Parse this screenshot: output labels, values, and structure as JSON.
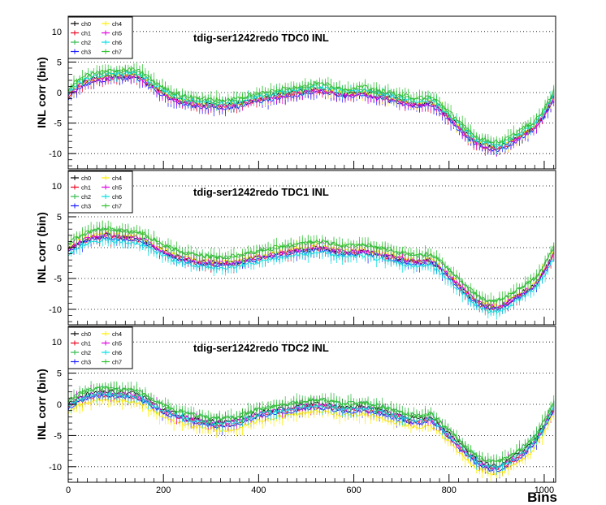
{
  "figure": {
    "xlabel": "Bins"
  },
  "colors": {
    "ch0": "#000000",
    "ch1": "#e8001c",
    "ch2": "#2fb84a",
    "ch3": "#1a1aff",
    "ch4": "#ffee00",
    "ch5": "#e000e0",
    "ch6": "#00e0e0",
    "ch7": "#30c030"
  },
  "chart_data": [
    {
      "type": "line",
      "title": "tdig-ser1242redo TDC0 INL",
      "ylabel": "INL corr (bin)",
      "xlim": [
        0,
        1024
      ],
      "ylim": [
        -12.5,
        12.5
      ],
      "xticks": [
        0,
        200,
        400,
        600,
        800,
        1000
      ],
      "yticks": [
        -10,
        -5,
        0,
        5,
        10
      ],
      "grid": "horizontal dotted",
      "legend": "top-left",
      "series_names": [
        "ch0",
        "ch1",
        "ch2",
        "ch3",
        "ch4",
        "ch5",
        "ch6",
        "ch7"
      ],
      "x": [
        0,
        20,
        40,
        60,
        80,
        100,
        120,
        140,
        160,
        180,
        200,
        220,
        240,
        260,
        280,
        300,
        320,
        340,
        360,
        380,
        400,
        420,
        440,
        460,
        480,
        500,
        520,
        540,
        560,
        580,
        600,
        620,
        640,
        660,
        680,
        700,
        720,
        740,
        760,
        780,
        800,
        820,
        840,
        860,
        880,
        900,
        920,
        940,
        960,
        980,
        1000,
        1020
      ],
      "base": [
        -0.5,
        1.2,
        2.0,
        2.4,
        2.6,
        2.7,
        2.8,
        2.9,
        2.2,
        1.0,
        0.0,
        -0.8,
        -1.3,
        -1.6,
        -1.9,
        -2.0,
        -2.1,
        -2.0,
        -1.8,
        -1.3,
        -1.0,
        -0.7,
        -0.4,
        -0.2,
        0.1,
        0.4,
        0.6,
        0.5,
        0.1,
        -0.2,
        -0.1,
        0.0,
        -0.3,
        -0.6,
        -0.9,
        -1.3,
        -1.6,
        -1.8,
        -1.5,
        -2.5,
        -4.0,
        -5.5,
        -7.0,
        -8.2,
        -8.7,
        -9.0,
        -8.5,
        -7.5,
        -6.5,
        -5.5,
        -3.5,
        -0.5
      ],
      "offsets": [
        0.0,
        -0.3,
        0.6,
        -0.5,
        0.0,
        -0.2,
        0.3,
        0.9
      ],
      "noise": 0.7
    },
    {
      "type": "line",
      "title": "tdig-ser1242redo TDC1 INL",
      "ylabel": "INL corr (bin)",
      "xlim": [
        0,
        1024
      ],
      "ylim": [
        -12.5,
        12.5
      ],
      "xticks": [
        0,
        200,
        400,
        600,
        800,
        1000
      ],
      "yticks": [
        -10,
        -5,
        0,
        5,
        10
      ],
      "grid": "horizontal dotted",
      "legend": "top-left",
      "series_names": [
        "ch0",
        "ch1",
        "ch2",
        "ch3",
        "ch4",
        "ch5",
        "ch6",
        "ch7"
      ],
      "x": [
        0,
        20,
        40,
        60,
        80,
        100,
        120,
        140,
        160,
        180,
        200,
        220,
        240,
        260,
        280,
        300,
        320,
        340,
        360,
        380,
        400,
        420,
        440,
        460,
        480,
        500,
        520,
        540,
        560,
        580,
        600,
        620,
        640,
        660,
        680,
        700,
        720,
        740,
        760,
        780,
        800,
        820,
        840,
        860,
        880,
        900,
        920,
        940,
        960,
        980,
        1000,
        1020
      ],
      "base": [
        -0.3,
        0.8,
        1.5,
        1.9,
        2.1,
        1.9,
        1.7,
        1.6,
        1.2,
        0.3,
        -0.5,
        -1.2,
        -1.7,
        -2.0,
        -2.3,
        -2.4,
        -2.5,
        -2.4,
        -2.2,
        -1.8,
        -1.5,
        -1.2,
        -0.9,
        -0.7,
        -0.4,
        -0.2,
        0.0,
        -0.1,
        -0.4,
        -0.7,
        -0.6,
        -0.5,
        -0.8,
        -1.1,
        -1.4,
        -1.8,
        -2.1,
        -2.2,
        -2.0,
        -3.0,
        -4.5,
        -6.0,
        -7.5,
        -8.8,
        -9.4,
        -9.6,
        -9.0,
        -8.0,
        -7.0,
        -6.0,
        -3.8,
        -0.8
      ],
      "offsets": [
        0.0,
        -0.3,
        0.9,
        -0.4,
        0.2,
        0.0,
        -0.8,
        1.0
      ],
      "noise": 0.7
    },
    {
      "type": "line",
      "title": "tdig-ser1242redo TDC2 INL",
      "ylabel": "INL corr (bin)",
      "xlim": [
        0,
        1024
      ],
      "ylim": [
        -12.5,
        12.5
      ],
      "xticks": [
        0,
        200,
        400,
        600,
        800,
        1000
      ],
      "yticks": [
        -10,
        -5,
        0,
        5,
        10
      ],
      "grid": "horizontal dotted",
      "legend": "top-left",
      "series_names": [
        "ch0",
        "ch1",
        "ch2",
        "ch3",
        "ch4",
        "ch5",
        "ch6",
        "ch7"
      ],
      "x": [
        0,
        20,
        40,
        60,
        80,
        100,
        120,
        140,
        160,
        180,
        200,
        220,
        240,
        260,
        280,
        300,
        320,
        340,
        360,
        380,
        400,
        420,
        440,
        460,
        480,
        500,
        520,
        540,
        560,
        580,
        600,
        620,
        640,
        660,
        680,
        700,
        720,
        740,
        760,
        780,
        800,
        820,
        840,
        860,
        880,
        900,
        920,
        940,
        960,
        980,
        1000,
        1020
      ],
      "base": [
        -0.3,
        0.7,
        1.3,
        1.6,
        1.7,
        1.6,
        1.5,
        1.4,
        0.8,
        -0.2,
        -1.0,
        -1.6,
        -2.1,
        -2.5,
        -2.8,
        -3.0,
        -3.1,
        -3.0,
        -2.7,
        -2.1,
        -1.6,
        -1.3,
        -1.1,
        -0.9,
        -0.6,
        -0.3,
        -0.2,
        -0.2,
        -0.5,
        -0.8,
        -0.7,
        -0.6,
        -0.9,
        -1.3,
        -1.7,
        -2.1,
        -2.5,
        -2.7,
        -2.3,
        -3.5,
        -5.0,
        -6.5,
        -8.0,
        -9.3,
        -9.9,
        -10.2,
        -9.5,
        -8.5,
        -7.5,
        -6.0,
        -3.5,
        -0.5
      ],
      "offsets": [
        0.3,
        -0.2,
        0.9,
        -0.4,
        -1.0,
        0.1,
        0.0,
        0.8
      ],
      "noise": 0.7
    }
  ]
}
